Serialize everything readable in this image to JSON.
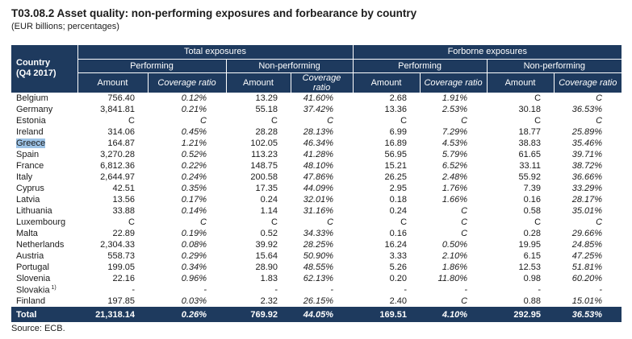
{
  "page": {
    "title": "T03.08.2 Asset quality: non-performing exposures and forbearance by country",
    "subtitle": "(EUR billions; percentages)",
    "source": "Source: ECB."
  },
  "colors": {
    "header_bg": "#1e3a5e",
    "highlight": "#9dc3e6"
  },
  "table": {
    "corner": {
      "line1": "Country",
      "line2": "(Q4 2017)"
    },
    "groups": [
      "Total exposures",
      "Forborne exposures"
    ],
    "subgroups": [
      "Performing",
      "Non-performing",
      "Performing",
      "Non-performing"
    ],
    "col_headers": [
      "Amount",
      "Coverage ratio",
      "Amount",
      "Coverage ratio",
      "Amount",
      "Coverage ratio",
      "Amount",
      "Coverage ratio"
    ],
    "rows": [
      {
        "country": "Belgium",
        "highlight": false,
        "sup": "",
        "values": [
          "756.40",
          "0.12%",
          "13.29",
          "41.60%",
          "2.68",
          "1.91%",
          "C",
          "C"
        ]
      },
      {
        "country": "Germany",
        "highlight": false,
        "sup": "",
        "values": [
          "3,841.81",
          "0.21%",
          "55.18",
          "37.42%",
          "13.36",
          "2.53%",
          "30.18",
          "36.53%"
        ]
      },
      {
        "country": "Estonia",
        "highlight": false,
        "sup": "",
        "values": [
          "C",
          "C",
          "C",
          "C",
          "C",
          "C",
          "C",
          "C"
        ]
      },
      {
        "country": "Ireland",
        "highlight": false,
        "sup": "",
        "values": [
          "314.06",
          "0.45%",
          "28.28",
          "28.13%",
          "6.99",
          "7.29%",
          "18.77",
          "25.89%"
        ]
      },
      {
        "country": "Greece",
        "highlight": true,
        "sup": "",
        "values": [
          "164.87",
          "1.21%",
          "102.05",
          "46.34%",
          "16.89",
          "4.53%",
          "38.83",
          "35.46%"
        ]
      },
      {
        "country": "Spain",
        "highlight": false,
        "sup": "",
        "values": [
          "3,270.28",
          "0.52%",
          "113.23",
          "41.28%",
          "56.95",
          "5.79%",
          "61.65",
          "39.71%"
        ]
      },
      {
        "country": "France",
        "highlight": false,
        "sup": "",
        "values": [
          "6,812.36",
          "0.22%",
          "148.75",
          "48.10%",
          "15.21",
          "6.52%",
          "33.11",
          "38.72%"
        ]
      },
      {
        "country": "Italy",
        "highlight": false,
        "sup": "",
        "values": [
          "2,644.97",
          "0.24%",
          "200.58",
          "47.86%",
          "26.25",
          "2.48%",
          "55.92",
          "36.66%"
        ]
      },
      {
        "country": "Cyprus",
        "highlight": false,
        "sup": "",
        "values": [
          "42.51",
          "0.35%",
          "17.35",
          "44.09%",
          "2.95",
          "1.76%",
          "7.39",
          "33.29%"
        ]
      },
      {
        "country": "Latvia",
        "highlight": false,
        "sup": "",
        "values": [
          "13.56",
          "0.17%",
          "0.24",
          "32.01%",
          "0.18",
          "1.66%",
          "0.16",
          "28.17%"
        ]
      },
      {
        "country": "Lithuania",
        "highlight": false,
        "sup": "",
        "values": [
          "33.88",
          "0.14%",
          "1.14",
          "31.16%",
          "0.24",
          "C",
          "0.58",
          "35.01%"
        ]
      },
      {
        "country": "Luxembourg",
        "highlight": false,
        "sup": "",
        "values": [
          "C",
          "C",
          "C",
          "C",
          "C",
          "C",
          "C",
          "C"
        ]
      },
      {
        "country": "Malta",
        "highlight": false,
        "sup": "",
        "values": [
          "22.89",
          "0.19%",
          "0.52",
          "34.33%",
          "0.16",
          "C",
          "0.28",
          "29.66%"
        ]
      },
      {
        "country": "Netherlands",
        "highlight": false,
        "sup": "",
        "values": [
          "2,304.33",
          "0.08%",
          "39.92",
          "28.25%",
          "16.24",
          "0.50%",
          "19.95",
          "24.85%"
        ]
      },
      {
        "country": "Austria",
        "highlight": false,
        "sup": "",
        "values": [
          "558.73",
          "0.29%",
          "15.64",
          "50.90%",
          "3.33",
          "2.10%",
          "6.15",
          "47.25%"
        ]
      },
      {
        "country": "Portugal",
        "highlight": false,
        "sup": "",
        "values": [
          "199.05",
          "0.34%",
          "28.90",
          "48.55%",
          "5.26",
          "1.86%",
          "12.53",
          "51.81%"
        ]
      },
      {
        "country": "Slovenia",
        "highlight": false,
        "sup": "",
        "values": [
          "22.16",
          "0.96%",
          "1.83",
          "62.13%",
          "0.20",
          "11.80%",
          "0.98",
          "60.20%"
        ]
      },
      {
        "country": "Slovakia",
        "highlight": false,
        "sup": "1)",
        "values": [
          "-",
          "-",
          "-",
          "-",
          "-",
          "-",
          "-",
          "-"
        ]
      },
      {
        "country": "Finland",
        "highlight": false,
        "sup": "",
        "values": [
          "197.85",
          "0.03%",
          "2.32",
          "26.15%",
          "2.40",
          "C",
          "0.88",
          "15.01%"
        ]
      }
    ],
    "total": {
      "label": "Total",
      "values": [
        "21,318.14",
        "0.26%",
        "769.92",
        "44.05%",
        "169.51",
        "4.10%",
        "292.95",
        "36.53%"
      ]
    }
  }
}
